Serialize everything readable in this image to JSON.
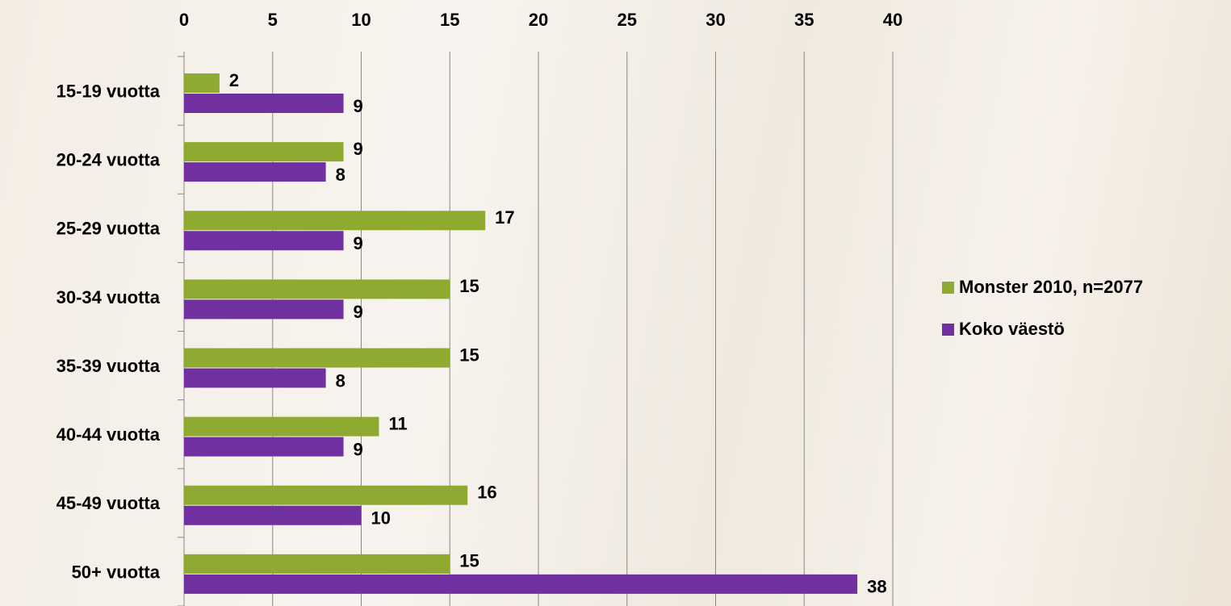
{
  "chart_data": {
    "type": "bar",
    "orientation": "horizontal",
    "categories": [
      "15-19 vuotta",
      "20-24 vuotta",
      "25-29 vuotta",
      "30-34 vuotta",
      "35-39 vuotta",
      "40-44 vuotta",
      "45-49 vuotta",
      "50+ vuotta"
    ],
    "series": [
      {
        "name": "Monster 2010, n=2077",
        "color": "#8faa30",
        "values": [
          2,
          9,
          17,
          15,
          15,
          11,
          16,
          15
        ]
      },
      {
        "name": "Koko väestö",
        "color": "#7030a0",
        "values": [
          9,
          8,
          9,
          9,
          8,
          9,
          10,
          38
        ]
      }
    ],
    "xlim": [
      0,
      40
    ],
    "xticks": [
      0,
      5,
      10,
      15,
      20,
      25,
      30,
      35,
      40
    ],
    "grid": true,
    "legend": "right",
    "data_labels": true
  }
}
